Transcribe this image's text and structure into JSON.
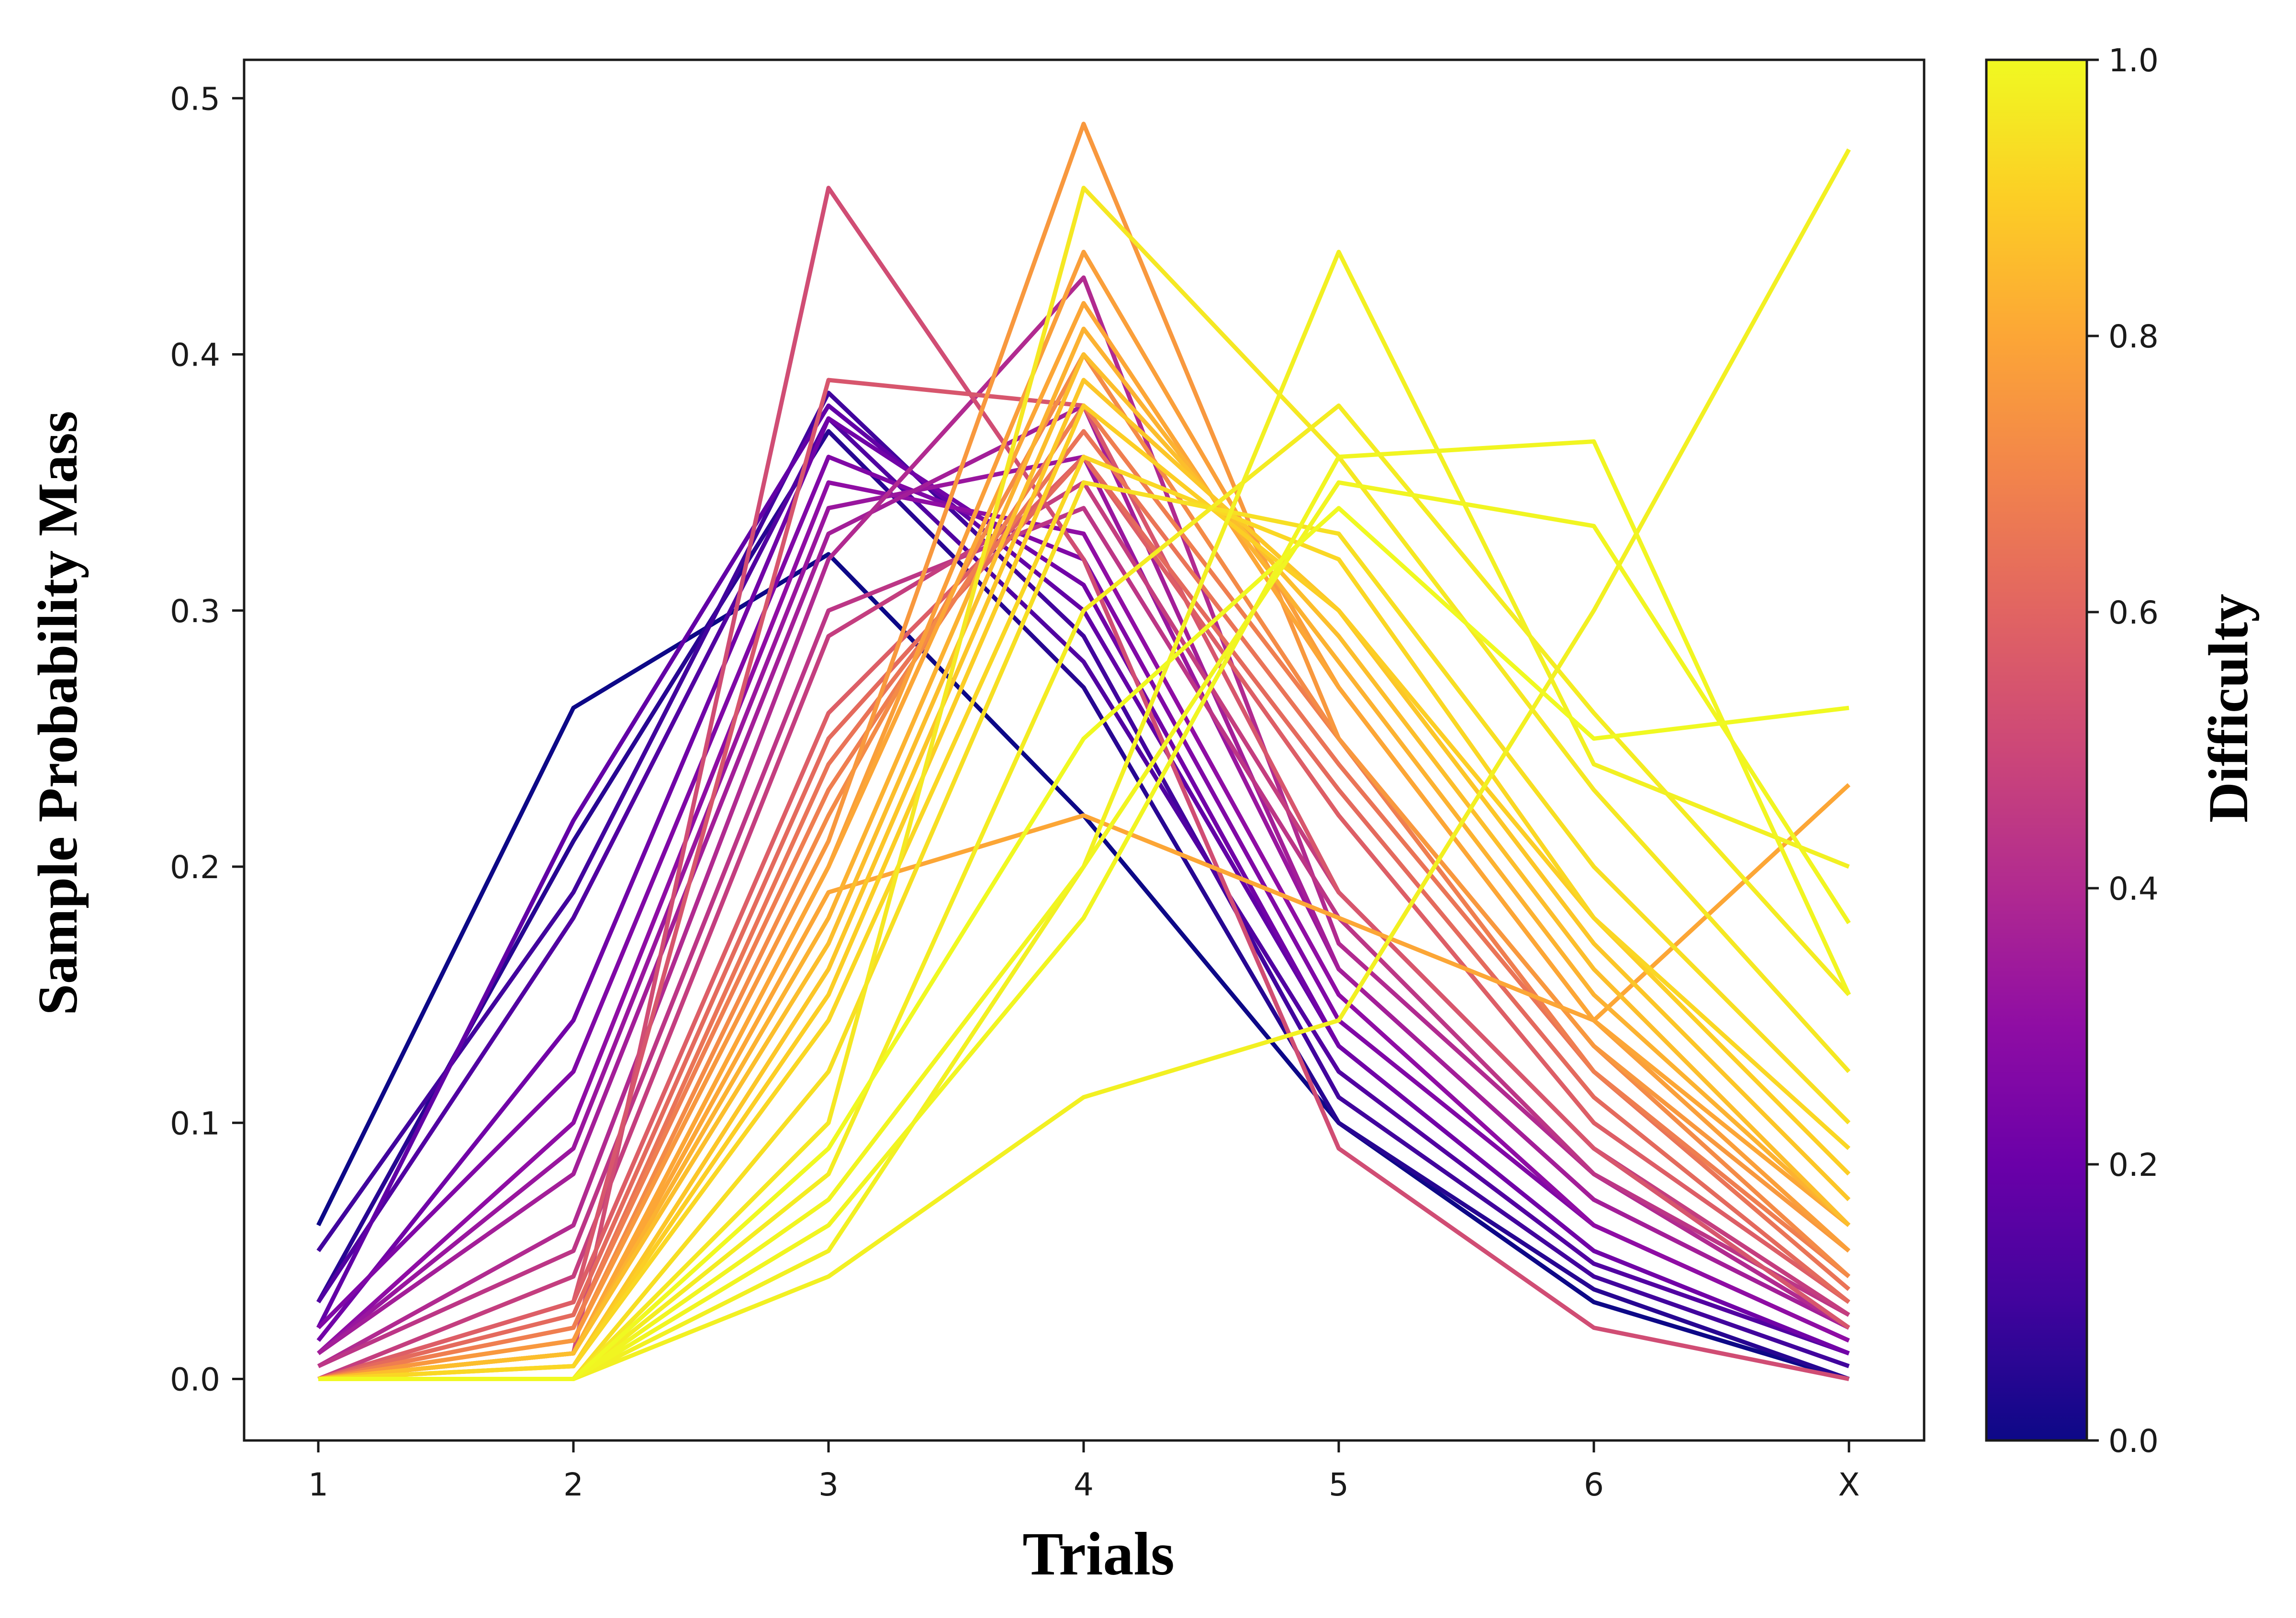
{
  "chart_data": {
    "type": "line",
    "title": "",
    "xlabel": "Trials",
    "ylabel": "Sample Probability Mass",
    "categories": [
      "1",
      "2",
      "3",
      "4",
      "5",
      "6",
      "X"
    ],
    "ylim": [
      -0.024,
      0.515
    ],
    "yticks": [
      0.0,
      0.1,
      0.2,
      0.3,
      0.4,
      0.5
    ],
    "ytick_labels": [
      "0.0",
      "0.1",
      "0.2",
      "0.3",
      "0.4",
      "0.5"
    ],
    "grid": false,
    "colorbar": {
      "label": "Difficulty",
      "colormap": "plasma",
      "range": [
        0.0,
        1.0
      ],
      "ticks": [
        0.0,
        0.2,
        0.4,
        0.6,
        0.8,
        1.0
      ],
      "tick_labels": [
        "0.0",
        "0.2",
        "0.4",
        "0.6",
        "0.8",
        "1.0"
      ],
      "stops": [
        "#0d0887",
        "#41049d",
        "#6a00a8",
        "#8f0da4",
        "#b12a90",
        "#cc4778",
        "#e16462",
        "#f2844b",
        "#fca636",
        "#fcce25",
        "#f0f921"
      ]
    },
    "series": [
      {
        "difficulty": 0.0,
        "values": [
          0.06,
          0.262,
          0.322,
          0.22,
          0.1,
          0.03,
          0.0
        ]
      },
      {
        "difficulty": 0.05,
        "values": [
          0.03,
          0.21,
          0.37,
          0.27,
          0.1,
          0.035,
          0.0
        ]
      },
      {
        "difficulty": 0.1,
        "values": [
          0.05,
          0.19,
          0.385,
          0.29,
          0.11,
          0.04,
          0.005
        ]
      },
      {
        "difficulty": 0.14,
        "values": [
          0.03,
          0.18,
          0.375,
          0.28,
          0.12,
          0.045,
          0.01
        ]
      },
      {
        "difficulty": 0.18,
        "values": [
          0.02,
          0.218,
          0.38,
          0.3,
          0.13,
          0.05,
          0.01
        ]
      },
      {
        "difficulty": 0.22,
        "values": [
          0.015,
          0.14,
          0.375,
          0.31,
          0.13,
          0.05,
          0.01
        ]
      },
      {
        "difficulty": 0.26,
        "values": [
          0.02,
          0.12,
          0.36,
          0.32,
          0.14,
          0.06,
          0.015
        ]
      },
      {
        "difficulty": 0.3,
        "values": [
          0.01,
          0.1,
          0.35,
          0.33,
          0.15,
          0.06,
          0.015
        ]
      },
      {
        "difficulty": 0.33,
        "values": [
          0.01,
          0.09,
          0.34,
          0.36,
          0.16,
          0.07,
          0.02
        ]
      },
      {
        "difficulty": 0.36,
        "values": [
          0.01,
          0.08,
          0.33,
          0.38,
          0.16,
          0.07,
          0.02
        ]
      },
      {
        "difficulty": 0.4,
        "values": [
          0.005,
          0.06,
          0.32,
          0.43,
          0.17,
          0.08,
          0.02
        ]
      },
      {
        "difficulty": 0.44,
        "values": [
          0.005,
          0.05,
          0.3,
          0.34,
          0.18,
          0.08,
          0.025
        ]
      },
      {
        "difficulty": 0.47,
        "values": [
          0.0,
          0.04,
          0.29,
          0.35,
          0.19,
          0.09,
          0.025
        ]
      },
      {
        "difficulty": 0.52,
        "values": [
          0.0,
          0.01,
          0.465,
          0.32,
          0.09,
          0.02,
          0.0
        ]
      },
      {
        "difficulty": 0.55,
        "values": [
          0.0,
          0.03,
          0.39,
          0.38,
          0.19,
          0.09,
          0.02
        ]
      },
      {
        "difficulty": 0.58,
        "values": [
          0.0,
          0.03,
          0.26,
          0.36,
          0.22,
          0.1,
          0.03
        ]
      },
      {
        "difficulty": 0.62,
        "values": [
          0.0,
          0.025,
          0.25,
          0.36,
          0.23,
          0.11,
          0.03
        ]
      },
      {
        "difficulty": 0.65,
        "values": [
          0.0,
          0.02,
          0.24,
          0.37,
          0.24,
          0.12,
          0.035
        ]
      },
      {
        "difficulty": 0.68,
        "values": [
          0.0,
          0.02,
          0.23,
          0.38,
          0.25,
          0.12,
          0.04
        ]
      },
      {
        "difficulty": 0.72,
        "values": [
          0.0,
          0.015,
          0.22,
          0.4,
          0.25,
          0.13,
          0.04
        ]
      },
      {
        "difficulty": 0.76,
        "values": [
          0.0,
          0.015,
          0.21,
          0.49,
          0.25,
          0.13,
          0.05
        ]
      },
      {
        "difficulty": 0.78,
        "values": [
          0.0,
          0.01,
          0.2,
          0.44,
          0.27,
          0.14,
          0.05
        ]
      },
      {
        "difficulty": 0.8,
        "values": [
          0.0,
          0.01,
          0.2,
          0.42,
          0.27,
          0.14,
          0.06
        ]
      },
      {
        "difficulty": 0.8,
        "values": [
          0.0,
          0.01,
          0.19,
          0.22,
          0.18,
          0.14,
          0.232
        ]
      },
      {
        "difficulty": 0.83,
        "values": [
          0.0,
          0.01,
          0.18,
          0.41,
          0.28,
          0.15,
          0.06
        ]
      },
      {
        "difficulty": 0.86,
        "values": [
          0.0,
          0.01,
          0.17,
          0.4,
          0.29,
          0.16,
          0.06
        ]
      },
      {
        "difficulty": 0.88,
        "values": [
          0.0,
          0.005,
          0.16,
          0.39,
          0.3,
          0.17,
          0.07
        ]
      },
      {
        "difficulty": 0.9,
        "values": [
          0.0,
          0.005,
          0.15,
          0.38,
          0.3,
          0.18,
          0.08
        ]
      },
      {
        "difficulty": 0.92,
        "values": [
          0.0,
          0.005,
          0.14,
          0.36,
          0.32,
          0.18,
          0.09
        ]
      },
      {
        "difficulty": 0.94,
        "values": [
          0.0,
          0.0,
          0.12,
          0.35,
          0.33,
          0.2,
          0.1
        ]
      },
      {
        "difficulty": 0.96,
        "values": [
          0.0,
          0.0,
          0.1,
          0.465,
          0.36,
          0.23,
          0.12
        ]
      },
      {
        "difficulty": 0.97,
        "values": [
          0.0,
          0.0,
          0.08,
          0.3,
          0.38,
          0.26,
          0.15
        ]
      },
      {
        "difficulty": 0.98,
        "values": [
          0.0,
          0.0,
          0.05,
          0.2,
          0.44,
          0.24,
          0.2
        ]
      },
      {
        "difficulty": 0.98,
        "values": [
          0.0,
          0.0,
          0.04,
          0.11,
          0.14,
          0.3,
          0.48
        ]
      },
      {
        "difficulty": 0.99,
        "values": [
          0.0,
          0.0,
          0.06,
          0.18,
          0.36,
          0.366,
          0.15
        ]
      },
      {
        "difficulty": 0.99,
        "values": [
          0.0,
          0.0,
          0.07,
          0.2,
          0.35,
          0.333,
          0.178
        ]
      },
      {
        "difficulty": 1.0,
        "values": [
          0.0,
          0.0,
          0.09,
          0.25,
          0.34,
          0.25,
          0.262
        ]
      }
    ]
  }
}
